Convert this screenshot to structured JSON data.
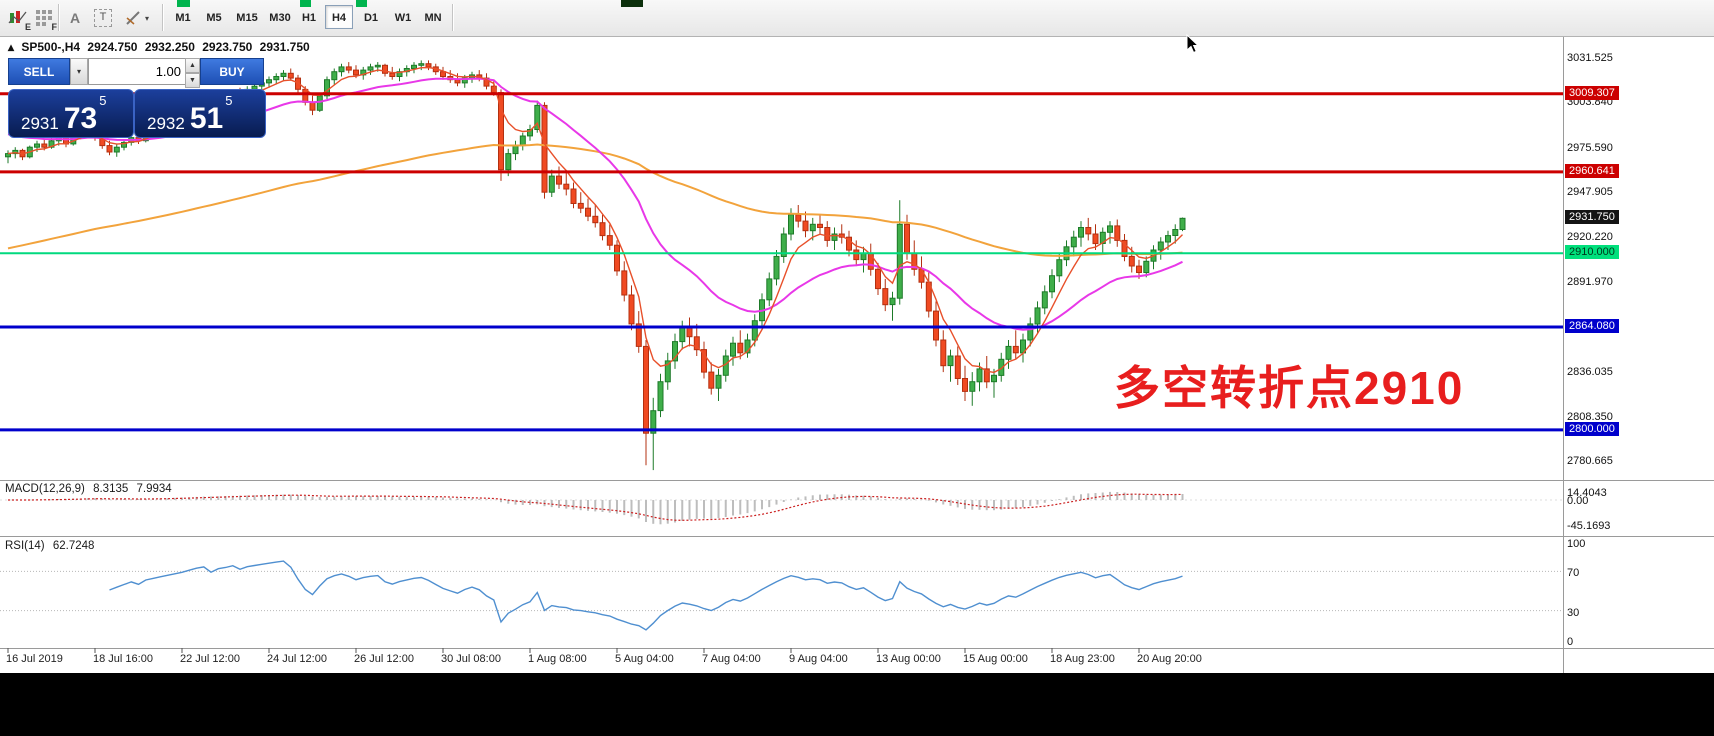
{
  "toolbar": {
    "timeframes": [
      "M1",
      "M5",
      "M15",
      "M30",
      "H1",
      "H4",
      "D1",
      "W1",
      "MN"
    ],
    "active_timeframe": "H4",
    "icons": {
      "chart_badge": "E",
      "grid_badge": "F",
      "text_tool": "A",
      "textbox_tool": "T",
      "caret_down": "▾",
      "spinner_up": "▲",
      "spinner_down": "▼"
    }
  },
  "chart": {
    "header": {
      "marker": "▴",
      "symbol": "SP500-,H4",
      "open": "2924.750",
      "high": "2932.250",
      "low": "2923.750",
      "close": "2931.750"
    },
    "annotation": {
      "text": "多空转折点2910",
      "color": "#e81e1e"
    }
  },
  "trade_panel": {
    "sell_label": "SELL",
    "buy_label": "BUY",
    "volume": "1.00",
    "bid": {
      "big_figure": "2931",
      "pips": "73",
      "pipette": "5"
    },
    "ask": {
      "big_figure": "2932",
      "pips": "51",
      "pipette": "5"
    }
  },
  "indicators": {
    "macd": {
      "name": "MACD(12,26,9)",
      "value_main": "8.3135",
      "value_signal": "7.9934",
      "axis": [
        {
          "text": "14.4043",
          "v": 14.4043
        },
        {
          "text": "0.00",
          "v": 0
        },
        {
          "text": "-45.1693",
          "v": -45.1693
        }
      ]
    },
    "rsi": {
      "name": "RSI(14)",
      "value": "62.7248",
      "levels": [
        70,
        30
      ],
      "axis": [
        {
          "text": "100",
          "v": 100
        },
        {
          "text": "70",
          "v": 70
        },
        {
          "text": "30",
          "v": 30
        },
        {
          "text": "0",
          "v": 0
        }
      ]
    }
  },
  "chart_data": {
    "type": "candlestick",
    "symbol": "SP500-",
    "timeframe": "H4",
    "style": {
      "up_fill": "#3fae4a",
      "up_stroke": "#1d7a28",
      "down_fill": "#f04a22",
      "down_stroke": "#b33010",
      "ma_slow": "#f2a33c",
      "ma_mid": "#e838e8",
      "ma_fast": "#e8502a",
      "macd_hist": "#bdbdbd",
      "macd_signal": "#cc2222",
      "rsi_line": "#4f8fd0"
    },
    "overlays": [
      {
        "name": "slow moving average",
        "color": "#f2a33c"
      },
      {
        "name": "medium moving average",
        "color": "#e838e8"
      },
      {
        "name": "fast moving average",
        "color": "#e8502a"
      }
    ],
    "hlines": [
      {
        "price": 3009.307,
        "color": "#cc0000",
        "width": 3
      },
      {
        "price": 2960.641,
        "color": "#cc0000",
        "width": 3
      },
      {
        "price": 2910.0,
        "color": "#00d97e",
        "width": 2
      },
      {
        "price": 2864.08,
        "color": "#0000cc",
        "width": 3
      },
      {
        "price": 2800.0,
        "color": "#0000cc",
        "width": 3
      }
    ],
    "axis_ticks": [
      {
        "text": "3031.525",
        "v": 3031.525
      },
      {
        "text": "3003.840",
        "v": 3003.84
      },
      {
        "text": "2975.590",
        "v": 2975.59
      },
      {
        "text": "2947.905",
        "v": 2947.905
      },
      {
        "text": "2920.220",
        "v": 2920.22
      },
      {
        "text": "2891.970",
        "v": 2891.97
      },
      {
        "text": "2836.035",
        "v": 2836.035
      },
      {
        "text": "2808.350",
        "v": 2808.35
      },
      {
        "text": "2780.665",
        "v": 2780.665
      }
    ],
    "axis_chips": [
      {
        "text": "3009.307",
        "price": 3009.307,
        "bg": "#cc0000",
        "fg": "#ffffff"
      },
      {
        "text": "2960.641",
        "price": 2960.641,
        "bg": "#cc0000",
        "fg": "#ffffff"
      },
      {
        "text": "2931.750",
        "price": 2931.75,
        "bg": "#141414",
        "fg": "#ffffff"
      },
      {
        "text": "2910.000",
        "price": 2910.0,
        "bg": "#00e07c",
        "fg": "#00371c"
      },
      {
        "text": "2864.080",
        "price": 2864.08,
        "bg": "#0000cc",
        "fg": "#ffffff"
      },
      {
        "text": "2800.000",
        "price": 2800.0,
        "bg": "#0000cc",
        "fg": "#ffffff"
      }
    ],
    "time_labels": [
      "16 Jul 2019",
      "18 Jul 16:00",
      "22 Jul 12:00",
      "24 Jul 12:00",
      "26 Jul 12:00",
      "30 Jul 08:00",
      "1 Aug 08:00",
      "5 Aug 04:00",
      "7 Aug 04:00",
      "9 Aug 04:00",
      "13 Aug 00:00",
      "15 Aug 00:00",
      "18 Aug 23:00",
      "20 Aug 20:00"
    ],
    "candles": [
      [
        2970,
        2974,
        2966,
        2972
      ],
      [
        2972,
        2976,
        2969,
        2974
      ],
      [
        2974,
        2975,
        2968,
        2970
      ],
      [
        2970,
        2977,
        2969,
        2976
      ],
      [
        2976,
        2980,
        2973,
        2978
      ],
      [
        2978,
        2981,
        2974,
        2976
      ],
      [
        2976,
        2982,
        2975,
        2980
      ],
      [
        2980,
        2984,
        2977,
        2982
      ],
      [
        2982,
        2983,
        2976,
        2978
      ],
      [
        2978,
        2985,
        2977,
        2984
      ],
      [
        2984,
        2988,
        2981,
        2986
      ],
      [
        2986,
        2990,
        2983,
        2988
      ],
      [
        2988,
        2989,
        2980,
        2982
      ],
      [
        2982,
        2984,
        2975,
        2977
      ],
      [
        2977,
        2980,
        2971,
        2973
      ],
      [
        2973,
        2978,
        2970,
        2976
      ],
      [
        2976,
        2981,
        2974,
        2979
      ],
      [
        2979,
        2984,
        2977,
        2982
      ],
      [
        2982,
        2985,
        2978,
        2980
      ],
      [
        2980,
        2986,
        2979,
        2985
      ],
      [
        2985,
        2989,
        2982,
        2987
      ],
      [
        2987,
        2991,
        2984,
        2989
      ],
      [
        2989,
        2993,
        2986,
        2991
      ],
      [
        2991,
        2995,
        2988,
        2993
      ],
      [
        2993,
        2997,
        2990,
        2995
      ],
      [
        2995,
        3000,
        2993,
        2998
      ],
      [
        2998,
        3003,
        2996,
        3001
      ],
      [
        3001,
        3005,
        2998,
        3003
      ],
      [
        3003,
        3006,
        2999,
        3000
      ],
      [
        3000,
        3007,
        2999,
        3005
      ],
      [
        3005,
        3009,
        3002,
        3007
      ],
      [
        3007,
        3012,
        3005,
        3010
      ],
      [
        3010,
        3013,
        3006,
        3008
      ],
      [
        3008,
        3014,
        3007,
        3012
      ],
      [
        3012,
        3016,
        3010,
        3014
      ],
      [
        3014,
        3018,
        3012,
        3016
      ],
      [
        3016,
        3020,
        3013,
        3018
      ],
      [
        3018,
        3022,
        3015,
        3020
      ],
      [
        3020,
        3024,
        3017,
        3022
      ],
      [
        3022,
        3025,
        3018,
        3019
      ],
      [
        3019,
        3021,
        3010,
        3012
      ],
      [
        3012,
        3014,
        3002,
        3004
      ],
      [
        3004,
        3008,
        2996,
        2999
      ],
      [
        2999,
        3010,
        2998,
        3008
      ],
      [
        3008,
        3020,
        3006,
        3018
      ],
      [
        3018,
        3025,
        3015,
        3023
      ],
      [
        3023,
        3028,
        3020,
        3026
      ],
      [
        3026,
        3029,
        3022,
        3024
      ],
      [
        3024,
        3027,
        3019,
        3021
      ],
      [
        3021,
        3026,
        3018,
        3024
      ],
      [
        3024,
        3028,
        3021,
        3026
      ],
      [
        3026,
        3029,
        3023,
        3027
      ],
      [
        3027,
        3028,
        3020,
        3022
      ],
      [
        3022,
        3026,
        3018,
        3020
      ],
      [
        3020,
        3025,
        3017,
        3023
      ],
      [
        3023,
        3027,
        3020,
        3025
      ],
      [
        3025,
        3029,
        3022,
        3027
      ],
      [
        3027,
        3030,
        3024,
        3028
      ],
      [
        3028,
        3030,
        3024,
        3026
      ],
      [
        3026,
        3028,
        3021,
        3023
      ],
      [
        3023,
        3026,
        3018,
        3020
      ],
      [
        3020,
        3024,
        3016,
        3018
      ],
      [
        3018,
        3022,
        3014,
        3016
      ],
      [
        3016,
        3021,
        3013,
        3019
      ],
      [
        3019,
        3023,
        3016,
        3021
      ],
      [
        3021,
        3024,
        3017,
        3019
      ],
      [
        3019,
        3022,
        3012,
        3014
      ],
      [
        3014,
        3017,
        3008,
        3010
      ],
      [
        3010,
        3012,
        2955,
        2962
      ],
      [
        2962,
        2975,
        2958,
        2972
      ],
      [
        2972,
        2980,
        2968,
        2977
      ],
      [
        2977,
        2985,
        2974,
        2983
      ],
      [
        2983,
        2990,
        2980,
        2987
      ],
      [
        2987,
        3005,
        2985,
        3002
      ],
      [
        3002,
        3004,
        2944,
        2948
      ],
      [
        2948,
        2962,
        2945,
        2958
      ],
      [
        2958,
        2964,
        2950,
        2953
      ],
      [
        2953,
        2960,
        2946,
        2950
      ],
      [
        2950,
        2954,
        2938,
        2941
      ],
      [
        2941,
        2948,
        2935,
        2938
      ],
      [
        2938,
        2944,
        2930,
        2933
      ],
      [
        2933,
        2940,
        2926,
        2929
      ],
      [
        2929,
        2934,
        2918,
        2921
      ],
      [
        2921,
        2928,
        2912,
        2915
      ],
      [
        2915,
        2918,
        2896,
        2899
      ],
      [
        2899,
        2905,
        2880,
        2884
      ],
      [
        2884,
        2890,
        2862,
        2866
      ],
      [
        2866,
        2874,
        2848,
        2852
      ],
      [
        2852,
        2856,
        2778,
        2798
      ],
      [
        2798,
        2820,
        2775,
        2812
      ],
      [
        2812,
        2835,
        2808,
        2830
      ],
      [
        2830,
        2848,
        2825,
        2843
      ],
      [
        2843,
        2860,
        2838,
        2855
      ],
      [
        2855,
        2868,
        2850,
        2864
      ],
      [
        2864,
        2870,
        2852,
        2858
      ],
      [
        2858,
        2866,
        2846,
        2850
      ],
      [
        2850,
        2855,
        2832,
        2836
      ],
      [
        2836,
        2842,
        2822,
        2826
      ],
      [
        2826,
        2838,
        2818,
        2834
      ],
      [
        2834,
        2850,
        2830,
        2846
      ],
      [
        2846,
        2858,
        2840,
        2854
      ],
      [
        2854,
        2862,
        2844,
        2848
      ],
      [
        2848,
        2860,
        2845,
        2856
      ],
      [
        2856,
        2872,
        2852,
        2868
      ],
      [
        2868,
        2885,
        2864,
        2881
      ],
      [
        2881,
        2898,
        2877,
        2894
      ],
      [
        2894,
        2912,
        2890,
        2908
      ],
      [
        2908,
        2926,
        2904,
        2922
      ],
      [
        2922,
        2938,
        2918,
        2934
      ],
      [
        2934,
        2940,
        2926,
        2930
      ],
      [
        2930,
        2936,
        2920,
        2924
      ],
      [
        2924,
        2932,
        2918,
        2928
      ],
      [
        2928,
        2934,
        2922,
        2926
      ],
      [
        2926,
        2930,
        2914,
        2918
      ],
      [
        2918,
        2926,
        2912,
        2922
      ],
      [
        2922,
        2928,
        2916,
        2920
      ],
      [
        2920,
        2924,
        2908,
        2912
      ],
      [
        2912,
        2918,
        2902,
        2906
      ],
      [
        2906,
        2914,
        2898,
        2910
      ],
      [
        2910,
        2916,
        2896,
        2900
      ],
      [
        2900,
        2904,
        2884,
        2888
      ],
      [
        2888,
        2894,
        2874,
        2878
      ],
      [
        2878,
        2886,
        2868,
        2882
      ],
      [
        2882,
        2943,
        2878,
        2928
      ],
      [
        2928,
        2934,
        2906,
        2910
      ],
      [
        2910,
        2918,
        2896,
        2900
      ],
      [
        2900,
        2908,
        2888,
        2892
      ],
      [
        2892,
        2898,
        2870,
        2874
      ],
      [
        2874,
        2880,
        2852,
        2856
      ],
      [
        2856,
        2862,
        2836,
        2840
      ],
      [
        2840,
        2850,
        2830,
        2846
      ],
      [
        2846,
        2852,
        2828,
        2832
      ],
      [
        2832,
        2840,
        2818,
        2824
      ],
      [
        2824,
        2836,
        2815,
        2830
      ],
      [
        2830,
        2842,
        2824,
        2838
      ],
      [
        2838,
        2846,
        2826,
        2830
      ],
      [
        2830,
        2838,
        2820,
        2834
      ],
      [
        2834,
        2848,
        2830,
        2844
      ],
      [
        2844,
        2856,
        2838,
        2852
      ],
      [
        2852,
        2862,
        2844,
        2848
      ],
      [
        2848,
        2860,
        2842,
        2856
      ],
      [
        2856,
        2870,
        2852,
        2866
      ],
      [
        2866,
        2880,
        2860,
        2876
      ],
      [
        2876,
        2890,
        2872,
        2886
      ],
      [
        2886,
        2900,
        2882,
        2896
      ],
      [
        2896,
        2910,
        2892,
        2906
      ],
      [
        2906,
        2918,
        2902,
        2914
      ],
      [
        2914,
        2924,
        2908,
        2920
      ],
      [
        2920,
        2930,
        2914,
        2926
      ],
      [
        2926,
        2932,
        2918,
        2922
      ],
      [
        2922,
        2928,
        2912,
        2916
      ],
      [
        2916,
        2926,
        2910,
        2923
      ],
      [
        2923,
        2930,
        2916,
        2927
      ],
      [
        2927,
        2931,
        2914,
        2918
      ],
      [
        2918,
        2922,
        2905,
        2908
      ],
      [
        2908,
        2914,
        2898,
        2902
      ],
      [
        2902,
        2906,
        2894,
        2898
      ],
      [
        2898,
        2908,
        2895,
        2905
      ],
      [
        2905,
        2915,
        2900,
        2912
      ],
      [
        2912,
        2920,
        2906,
        2917
      ],
      [
        2917,
        2924,
        2912,
        2921
      ],
      [
        2921,
        2928,
        2916,
        2924.75
      ],
      [
        2924.75,
        2932.25,
        2923.75,
        2931.75
      ]
    ]
  }
}
